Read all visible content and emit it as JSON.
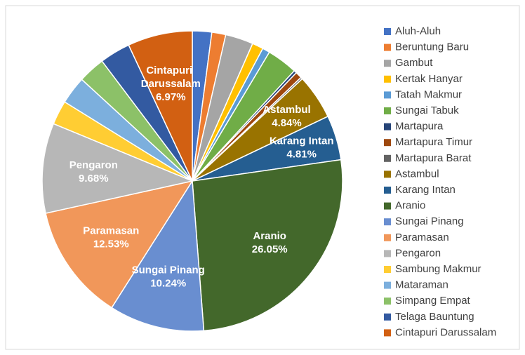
{
  "chart_data": {
    "type": "pie",
    "categories": [
      "Aluh-Aluh",
      "Beruntung Baru",
      "Gambut",
      "Kertak Hanyar",
      "Tatah Makmur",
      "Sungai Tabuk",
      "Martapura",
      "Martapura Timur",
      "Martapura Barat",
      "Astambul",
      "Karang Intan",
      "Aranio",
      "Sungai Pinang",
      "Paramasan",
      "Pengaron",
      "Sambung Makmur",
      "Mataraman",
      "Simpang Empat",
      "Telaga Bauntung",
      "Cintapuri Darussalam"
    ],
    "values": [
      2.08,
      1.5,
      3.0,
      1.2,
      0.8,
      3.3,
      0.3,
      0.7,
      0.2,
      4.84,
      4.81,
      26.05,
      10.24,
      12.53,
      9.68,
      2.6,
      3.0,
      2.9,
      3.3,
      6.97
    ],
    "value_labels": [
      null,
      null,
      null,
      null,
      null,
      null,
      null,
      null,
      null,
      "4.84%",
      "4.81%",
      "26.05%",
      "10.24%",
      "12.53%",
      "9.68%",
      null,
      null,
      null,
      null,
      "6.97%"
    ],
    "colors": [
      "#4472c4",
      "#ed7d31",
      "#a5a5a5",
      "#ffc000",
      "#5b9bd5",
      "#70ad47",
      "#264478",
      "#9e480e",
      "#636363",
      "#997300",
      "#255e91",
      "#43682b",
      "#698ed0",
      "#f1975a",
      "#b7b7b7",
      "#ffcd33",
      "#7cafdd",
      "#8cc168",
      "#335aa1",
      "#d26012"
    ],
    "legend": "right"
  }
}
